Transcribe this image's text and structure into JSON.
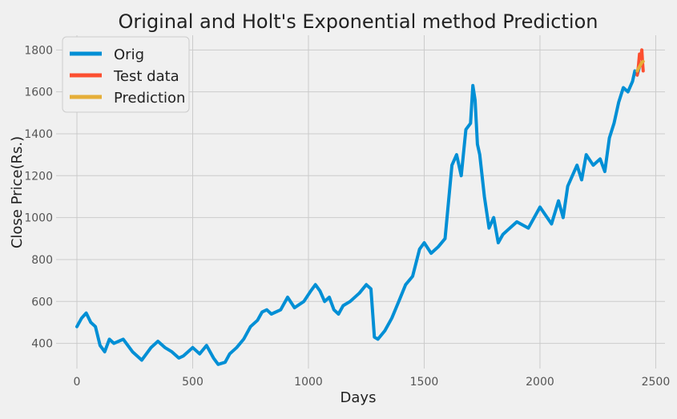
{
  "chart_data": {
    "type": "line",
    "title": "Original and Holt's Exponential method Prediction",
    "xlabel": "Days",
    "ylabel": "Close Price(Rs.)",
    "xlim": [
      -90,
      2540
    ],
    "ylim": [
      280,
      1870
    ],
    "x_ticks": [
      0,
      500,
      1000,
      1500,
      2000,
      2500
    ],
    "y_ticks": [
      400,
      600,
      800,
      1000,
      1200,
      1400,
      1600,
      1800
    ],
    "x_tick_labels": [
      "0",
      "500",
      "1000",
      "1500",
      "2000",
      "2500"
    ],
    "y_tick_labels": [
      "400",
      "600",
      "800",
      "1000",
      "1200",
      "1400",
      "1600",
      "1800"
    ],
    "grid": true,
    "legend_position": "top-left",
    "series": [
      {
        "name": "Orig",
        "color": "#008fd5",
        "x": [
          0,
          20,
          40,
          60,
          80,
          100,
          120,
          140,
          160,
          180,
          200,
          240,
          280,
          300,
          320,
          350,
          380,
          410,
          440,
          460,
          480,
          500,
          530,
          560,
          590,
          610,
          640,
          660,
          690,
          720,
          750,
          780,
          800,
          820,
          840,
          880,
          910,
          940,
          980,
          1010,
          1030,
          1050,
          1070,
          1090,
          1110,
          1130,
          1150,
          1180,
          1220,
          1250,
          1270,
          1285,
          1300,
          1330,
          1360,
          1390,
          1420,
          1450,
          1480,
          1500,
          1530,
          1560,
          1590,
          1620,
          1640,
          1660,
          1680,
          1700,
          1710,
          1720,
          1730,
          1740,
          1760,
          1780,
          1800,
          1820,
          1840,
          1860,
          1900,
          1950,
          2000,
          2050,
          2080,
          2100,
          2120,
          2140,
          2160,
          2180,
          2200,
          2230,
          2260,
          2280,
          2300,
          2320,
          2340,
          2360,
          2380,
          2400,
          2410,
          2420,
          2430,
          2440
        ],
        "y": [
          480,
          520,
          545,
          500,
          480,
          390,
          360,
          420,
          400,
          410,
          420,
          360,
          320,
          350,
          380,
          410,
          380,
          360,
          330,
          340,
          360,
          380,
          350,
          390,
          330,
          300,
          310,
          350,
          380,
          420,
          480,
          510,
          550,
          560,
          540,
          560,
          620,
          570,
          600,
          650,
          680,
          650,
          600,
          620,
          560,
          540,
          580,
          600,
          640,
          680,
          660,
          430,
          420,
          460,
          520,
          600,
          680,
          720,
          850,
          880,
          830,
          860,
          900,
          1250,
          1300,
          1200,
          1420,
          1450,
          1630,
          1560,
          1350,
          1300,
          1100,
          950,
          1000,
          880,
          920,
          940,
          980,
          950,
          1050,
          970,
          1080,
          1000,
          1150,
          1200,
          1250,
          1180,
          1300,
          1250,
          1280,
          1220,
          1380,
          1450,
          1550,
          1620,
          1600,
          1650,
          1700,
          1680,
          1720,
          1740
        ]
      },
      {
        "name": "Test data",
        "color": "#fc4f30",
        "x": [
          2420,
          2425,
          2430,
          2435,
          2440,
          2443,
          2446
        ],
        "y": [
          1680,
          1720,
          1780,
          1760,
          1800,
          1740,
          1700
        ]
      },
      {
        "name": "Prediction",
        "color": "#e5ae38",
        "x": [
          2420,
          2430,
          2440,
          2446
        ],
        "y": [
          1700,
          1720,
          1740,
          1745
        ]
      }
    ]
  }
}
